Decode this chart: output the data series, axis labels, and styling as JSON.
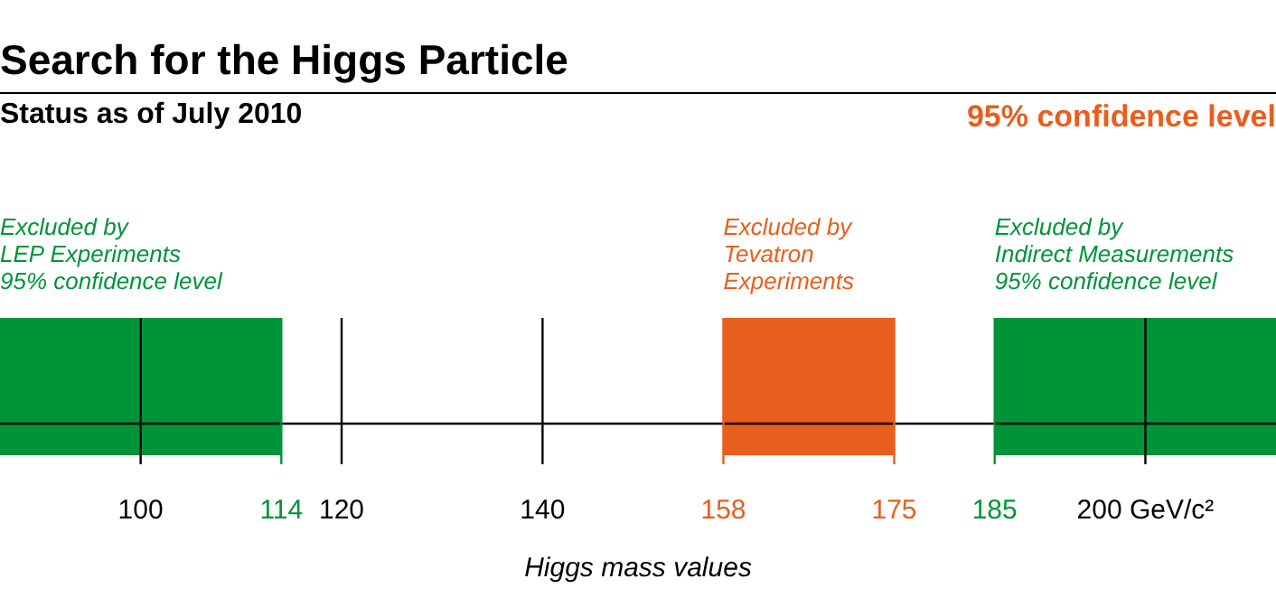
{
  "chart_data": {
    "type": "bar",
    "orientation": "horizontal",
    "title": "Search for the Higgs Particle",
    "subtitle": "Status as of July 2010",
    "xlabel": "Higgs mass values",
    "annotations": [
      "95% confidence level"
    ],
    "categories": [
      null
    ],
    "xlim": [
      86,
      213
    ],
    "xticks": [
      100,
      114,
      120,
      140,
      158,
      175,
      185,
      {
        "value": 200,
        "label": "200 GeV/c²"
      }
    ],
    "grid": "x",
    "series": [
      {
        "name": "Excluded by\nLEP Experiments\n95% confidence level",
        "color": "#00943a",
        "values": [
          28
        ],
        "base": [
          86
        ]
      },
      {
        "name": "Excluded by\nTevatron\nExperiments",
        "color": "#e85e1c",
        "values": [
          17
        ],
        "base": [
          158
        ]
      },
      {
        "name": "Excluded by\nIndirect Measurements\n95% confidence level",
        "color": "#00943a",
        "values": [
          28
        ],
        "base": [
          185
        ]
      }
    ]
  }
}
